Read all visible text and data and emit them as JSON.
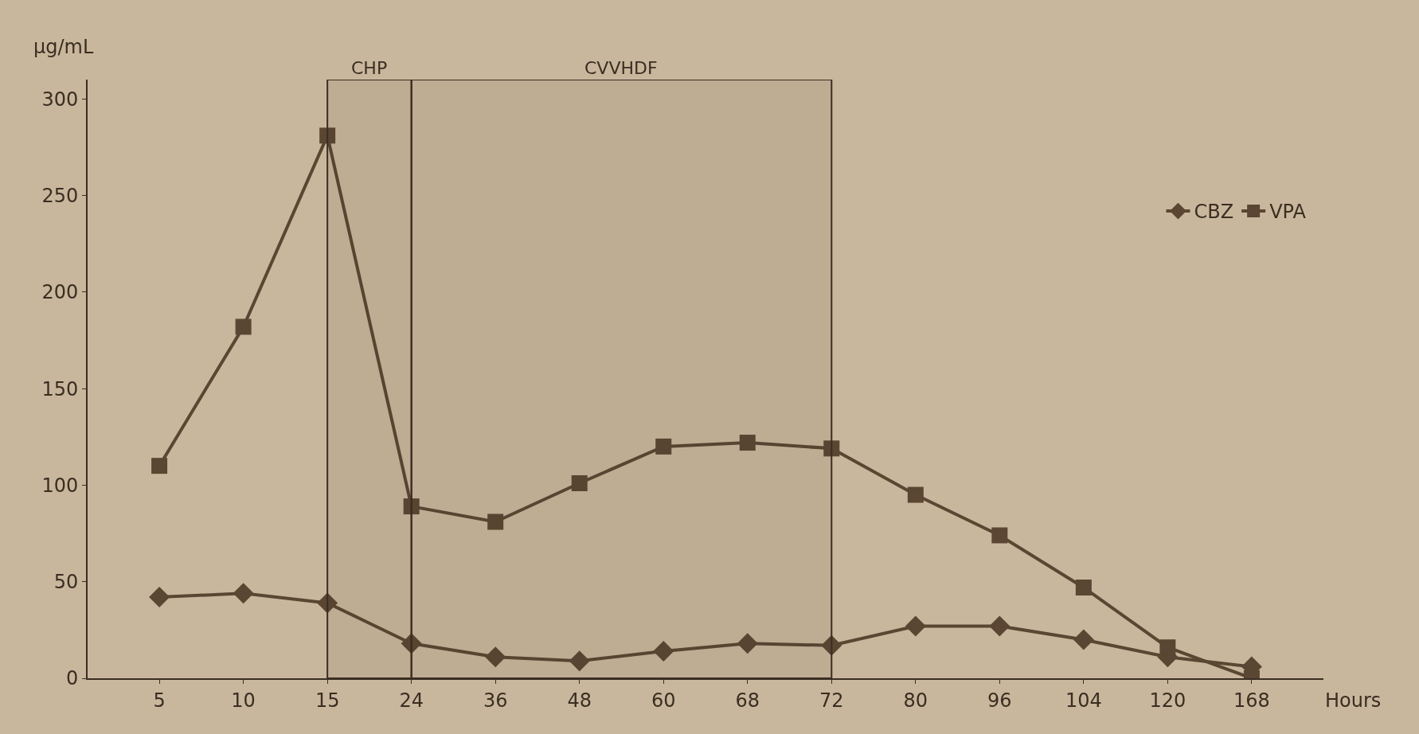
{
  "chart_data": {
    "type": "line",
    "ylabel": "µg/mL",
    "xlabel": "Hours",
    "categories": [
      "5",
      "10",
      "15",
      "24",
      "36",
      "48",
      "60",
      "68",
      "72",
      "80",
      "96",
      "104",
      "120",
      "168"
    ],
    "series": [
      {
        "name": "CBZ",
        "color": "#5a4632",
        "marker": "diamond",
        "values": [
          42,
          44,
          39,
          18,
          11,
          9,
          14,
          18,
          17,
          27,
          27,
          20,
          11,
          6
        ]
      },
      {
        "name": "VPA",
        "color": "#5a4632",
        "marker": "square",
        "values": [
          110,
          182,
          281,
          89,
          81,
          101,
          120,
          122,
          119,
          95,
          74,
          47,
          16,
          0
        ]
      }
    ],
    "ylim": [
      0,
      310
    ],
    "yticks": [
      0,
      50,
      100,
      150,
      200,
      250,
      300
    ],
    "bands": [
      {
        "axis": "x",
        "from": "15",
        "to": "24",
        "label": "CHP",
        "color": "#3a2e22"
      },
      {
        "axis": "x",
        "from": "24",
        "to": "72",
        "label": "CVVHDF",
        "color": "#3a2e22"
      }
    ],
    "grid": false,
    "legend": "right",
    "line_style": "solid"
  }
}
